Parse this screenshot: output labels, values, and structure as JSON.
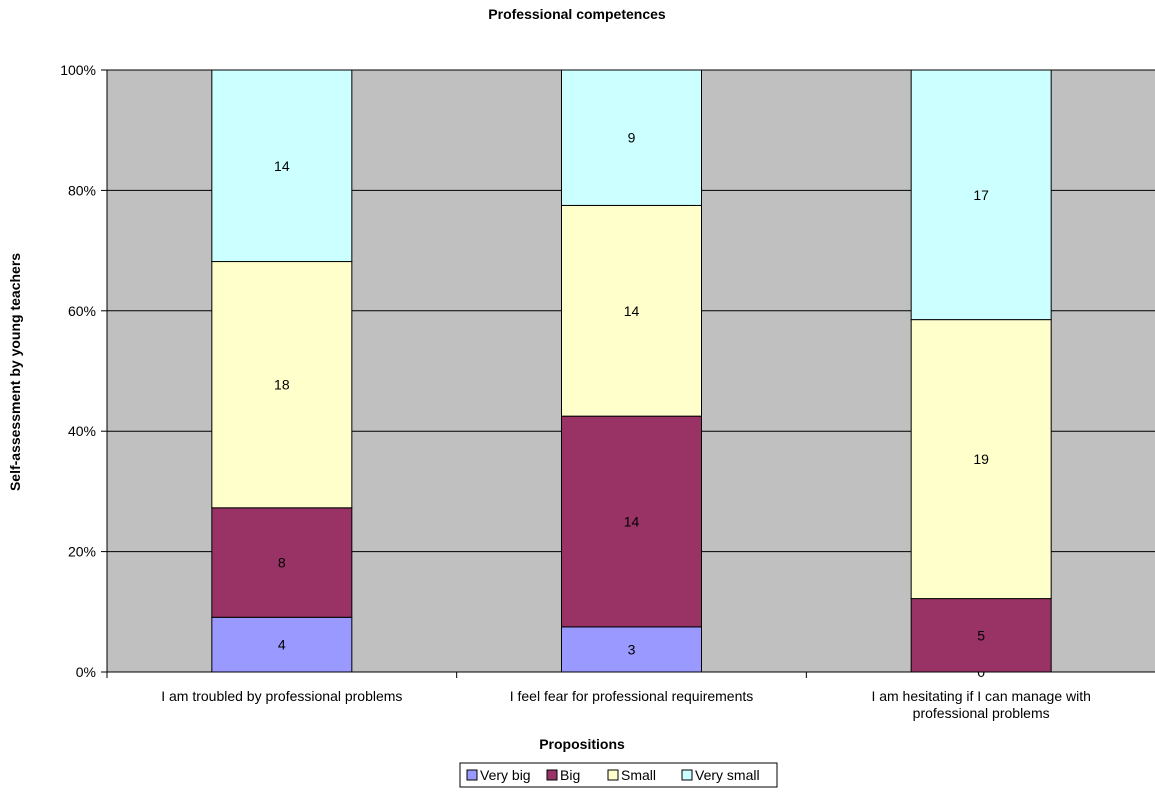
{
  "chart_data": {
    "type": "bar",
    "stacked": "percent",
    "title": "Professional competences",
    "xlabel": "Propositions",
    "ylabel": "Self-assessment by young teachers",
    "categories": [
      [
        "I am troubled by professional problems"
      ],
      [
        "I feel fear for professional requirements"
      ],
      [
        "I am hesitating if I can manage with",
        "professional problems"
      ]
    ],
    "series": [
      {
        "name": "Very big",
        "color": "#9999ff",
        "values": [
          4,
          3,
          0
        ]
      },
      {
        "name": "Big",
        "color": "#993366",
        "values": [
          8,
          14,
          5
        ]
      },
      {
        "name": "Small",
        "color": "#ffffcc",
        "values": [
          18,
          14,
          19
        ]
      },
      {
        "name": "Very small",
        "color": "#ccffff",
        "values": [
          14,
          9,
          17
        ]
      }
    ],
    "y_ticks": [
      "0%",
      "20%",
      "40%",
      "60%",
      "80%",
      "100%"
    ],
    "ylim": [
      0,
      100
    ],
    "grid": true,
    "plot_background": "#c0c0c0",
    "legend_position": "bottom"
  }
}
